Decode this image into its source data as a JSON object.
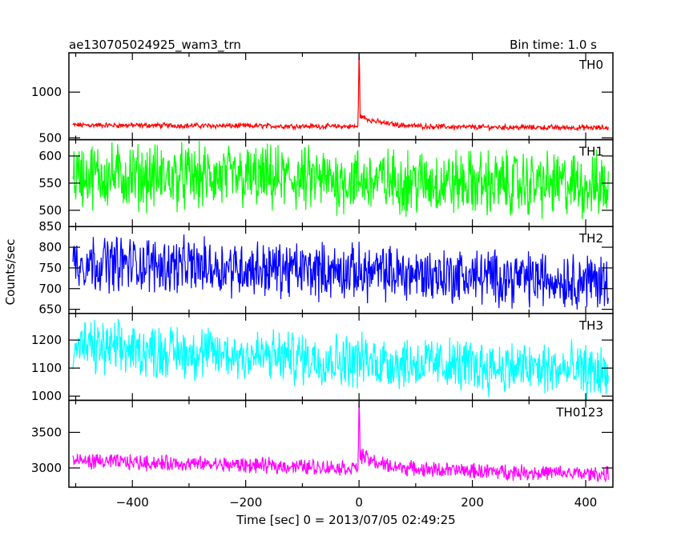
{
  "chart_data": {
    "type": "line",
    "title": "ae130705024925_wam3_trn",
    "subtitle": "Bin time: 1.0 s",
    "xlabel": "Time [sec] 0 = 2013/07/05 02:49:25",
    "ylabel": "Counts/sec",
    "xlim": [
      -512,
      448
    ],
    "x_ticks": [
      -400,
      -200,
      0,
      200,
      400
    ],
    "x_range": [
      -505,
      440
    ],
    "grid": false,
    "panels": [
      {
        "name": "TH0",
        "color": "#ff0000",
        "ylim": [
          480,
          1430
        ],
        "y_ticks": [
          500,
          1000
        ],
        "baseline_start": 640,
        "baseline_end": 610,
        "noise": 45,
        "burst": {
          "t": 0,
          "peak": 1430,
          "after_level": 120,
          "after_decay": 40
        }
      },
      {
        "name": "TH1",
        "color": "#00ff00",
        "ylim": [
          470,
          630
        ],
        "y_ticks": [
          500,
          550,
          600
        ],
        "baseline_start": 565,
        "baseline_end": 545,
        "noise": 95
      },
      {
        "name": "TH2",
        "color": "#0000ff",
        "ylim": [
          640,
          850
        ],
        "y_ticks": [
          650,
          700,
          750,
          800,
          850
        ],
        "baseline_start": 765,
        "baseline_end": 718,
        "noise": 105
      },
      {
        "name": "TH3",
        "color": "#00ffff",
        "ylim": [
          985,
          1295
        ],
        "y_ticks": [
          1000,
          1100,
          1200
        ],
        "baseline_start": 1175,
        "baseline_end": 1085,
        "noise": 150
      },
      {
        "name": "TH0123",
        "color": "#ff00ff",
        "ylim": [
          2730,
          3950
        ],
        "y_ticks": [
          3000,
          3500
        ],
        "baseline_start": 3100,
        "baseline_end": 2910,
        "noise": 170,
        "burst": {
          "t": 0,
          "peak": 3950,
          "after_level": 200,
          "after_decay": 35
        }
      }
    ]
  }
}
